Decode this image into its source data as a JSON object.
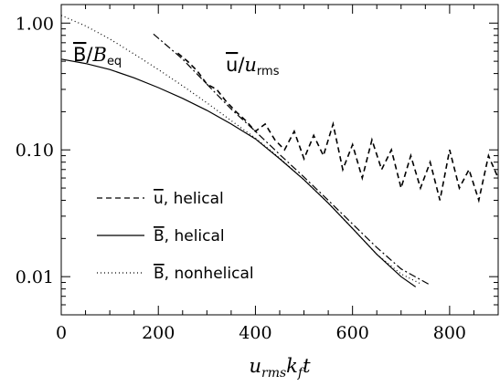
{
  "chart_data": {
    "type": "line",
    "xlabel": {
      "base": "u",
      "sub1": "rms",
      "mid": "k",
      "sub2": "f",
      "tail": "t"
    },
    "xlim": [
      0,
      900
    ],
    "ylim": [
      0.005,
      1.4
    ],
    "yscale": "log",
    "x_ticks": [
      0,
      200,
      400,
      600,
      800
    ],
    "x_tick_labels": [
      "0",
      "200",
      "400",
      "600",
      "800"
    ],
    "y_ticks": [
      0.01,
      0.1,
      1.0
    ],
    "y_tick_labels": [
      "0.01",
      "0.10",
      "1.00"
    ],
    "annotations": [
      {
        "id": "b-ratio",
        "letter": "B",
        "slash": "/",
        "denom": "B",
        "denom_sub": "eq"
      },
      {
        "id": "u-ratio",
        "letter": "u",
        "slash": "/",
        "denom": "u",
        "denom_sub": "rms"
      }
    ],
    "legend": {
      "position": "lower-left",
      "entries": [
        {
          "symbol": "u",
          "text": ", helical",
          "style": "dashed"
        },
        {
          "symbol": "B",
          "text": ", helical",
          "style": "solid"
        },
        {
          "symbol": "B",
          "text": ", nonhelical",
          "style": "dotted"
        }
      ]
    },
    "series": [
      {
        "style": "solid",
        "x": [
          0,
          50,
          100,
          150,
          200,
          250,
          300,
          350,
          400,
          450,
          500,
          550,
          600,
          650,
          700,
          730
        ],
        "y": [
          0.52,
          0.48,
          0.43,
          0.37,
          0.31,
          0.255,
          0.205,
          0.16,
          0.122,
          0.085,
          0.058,
          0.038,
          0.024,
          0.015,
          0.01,
          0.0083
        ]
      },
      {
        "style": "dotted",
        "x": [
          0,
          50,
          100,
          150,
          200,
          250,
          300,
          350,
          400,
          450,
          500,
          550,
          600,
          650,
          700,
          740
        ],
        "y": [
          1.15,
          0.95,
          0.75,
          0.57,
          0.43,
          0.32,
          0.235,
          0.17,
          0.124,
          0.086,
          0.058,
          0.038,
          0.024,
          0.015,
          0.0105,
          0.0088
        ]
      },
      {
        "style": "dashed",
        "x": [
          240,
          260,
          280,
          300,
          320,
          340,
          360,
          380,
          400,
          420,
          440,
          460,
          480,
          500,
          520,
          540,
          560,
          580,
          600,
          620,
          640,
          660,
          680,
          700,
          720,
          740,
          760,
          780,
          800,
          820,
          840,
          860,
          880,
          900
        ],
        "y": [
          0.58,
          0.5,
          0.42,
          0.33,
          0.3,
          0.24,
          0.2,
          0.17,
          0.14,
          0.16,
          0.12,
          0.1,
          0.14,
          0.085,
          0.13,
          0.09,
          0.16,
          0.07,
          0.11,
          0.06,
          0.12,
          0.07,
          0.1,
          0.05,
          0.09,
          0.05,
          0.08,
          0.04,
          0.1,
          0.05,
          0.07,
          0.04,
          0.09,
          0.06
        ]
      },
      {
        "style": "dash-dot",
        "x": [
          190,
          250,
          300,
          350,
          400,
          450,
          500,
          550,
          600,
          650,
          700,
          760
        ],
        "y": [
          0.82,
          0.52,
          0.33,
          0.21,
          0.14,
          0.092,
          0.061,
          0.04,
          0.026,
          0.017,
          0.0115,
          0.0086
        ]
      }
    ]
  }
}
